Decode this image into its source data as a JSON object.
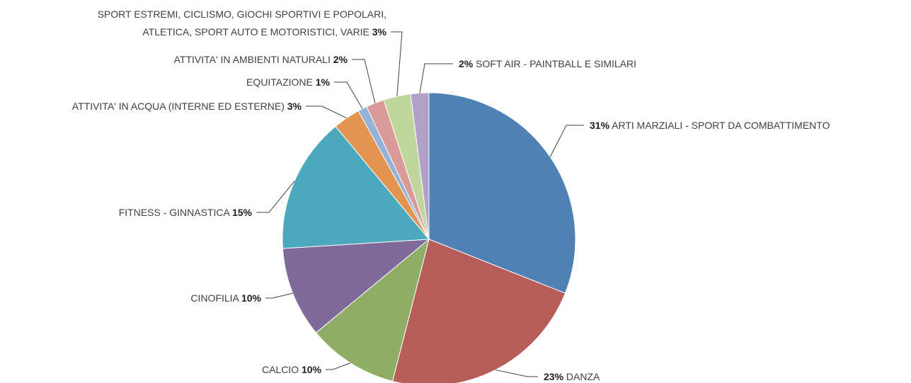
{
  "chart_data": {
    "type": "pie",
    "categories": [
      "ARTI MARZIALI - SPORT DA COMBATTIMENTO",
      "DANZA",
      "CALCIO",
      "CINOFILIA",
      "FITNESS - GINNASTICA",
      "ATTIVITA' IN ACQUA (INTERNE ED ESTERNE)",
      "EQUITAZIONE",
      "ATTIVITA' IN AMBIENTI NATURALI",
      "SPORT ESTREMI, CICLISMO, GIOCHI SPORTIVI E POPOLARI,\nATLETICA, SPORT AUTO E MOTORISTICI, VARIE",
      "SOFT AIR - PAINTBALL E SIMILARI"
    ],
    "values": [
      31,
      23,
      10,
      10,
      15,
      3,
      1,
      2,
      3,
      2
    ],
    "value_labels": [
      "31%",
      "23%",
      "10%",
      "10%",
      "15%",
      "3%",
      "1%",
      "2%",
      "3%",
      "2%"
    ],
    "colors": [
      "#4f81b4",
      "#b65d5a",
      "#8fad65",
      "#7e6b9c",
      "#4ba8bd",
      "#e29550",
      "#95b2d8",
      "#d99b9a",
      "#c1d59f",
      "#b1a1c7"
    ]
  }
}
